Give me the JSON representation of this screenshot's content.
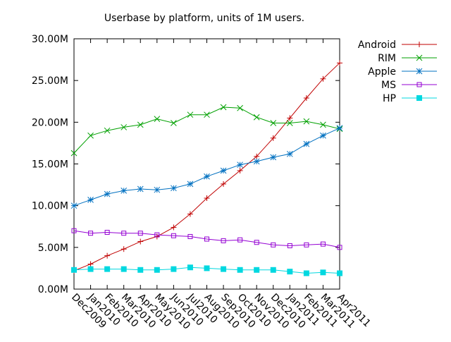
{
  "chart_data": {
    "type": "line",
    "title": "Userbase by platform, units of 1M users.",
    "xlabel": "",
    "ylabel": "",
    "ylim": [
      0,
      30
    ],
    "grid": false,
    "legend_position": "top-right",
    "yticks": [
      "0.00M",
      "5.00M",
      "10.00M",
      "15.00M",
      "20.00M",
      "25.00M",
      "30.00M"
    ],
    "categories": [
      "Dec2009",
      "Jan2010",
      "Feb2010",
      "Mar2010",
      "Apr2010",
      "May2010",
      "Jun2010",
      "Jul2010",
      "Aug2010",
      "Sep2010",
      "Oct2010",
      "Nov2010",
      "Dec2010",
      "Jan2011",
      "Feb2011",
      "Mar2011",
      "Apr2011"
    ],
    "series": [
      {
        "name": "Android",
        "color": "#c00000",
        "marker": "plus",
        "values": [
          2.2,
          3.0,
          4.0,
          4.8,
          5.7,
          6.3,
          7.4,
          9.0,
          10.9,
          12.6,
          14.2,
          15.9,
          18.1,
          20.5,
          22.9,
          25.2,
          27.1
        ]
      },
      {
        "name": "RIM",
        "color": "#00a000",
        "marker": "cross",
        "values": [
          16.3,
          18.4,
          19.0,
          19.4,
          19.7,
          20.4,
          19.9,
          20.9,
          20.9,
          21.8,
          21.7,
          20.6,
          19.9,
          19.9,
          20.1,
          19.7,
          19.2
        ]
      },
      {
        "name": "Apple",
        "color": "#0070c0",
        "marker": "star",
        "values": [
          10.0,
          10.7,
          11.4,
          11.8,
          12.0,
          11.9,
          12.1,
          12.6,
          13.5,
          14.2,
          14.9,
          15.3,
          15.8,
          16.2,
          17.4,
          18.4,
          19.3
        ]
      },
      {
        "name": "MS",
        "color": "#9400d3",
        "marker": "square-open",
        "values": [
          7.0,
          6.7,
          6.8,
          6.7,
          6.7,
          6.5,
          6.4,
          6.3,
          6.0,
          5.8,
          5.9,
          5.6,
          5.3,
          5.2,
          5.3,
          5.4,
          5.0
        ]
      },
      {
        "name": "HP",
        "color": "#00d8e0",
        "marker": "square-filled",
        "values": [
          2.3,
          2.4,
          2.4,
          2.4,
          2.3,
          2.3,
          2.4,
          2.6,
          2.5,
          2.4,
          2.3,
          2.3,
          2.3,
          2.1,
          1.9,
          2.0,
          1.9
        ]
      }
    ]
  }
}
